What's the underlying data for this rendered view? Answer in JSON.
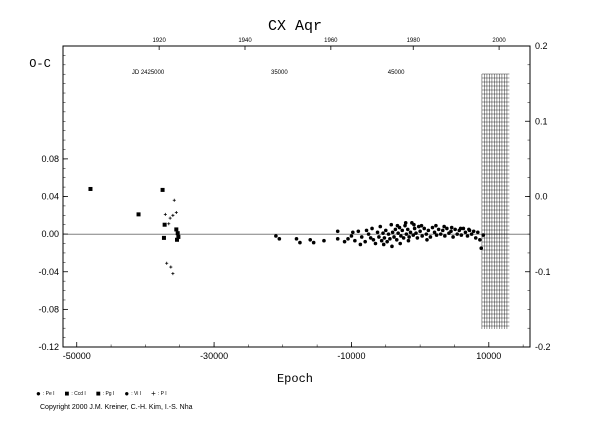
{
  "chart_data": {
    "type": "scatter",
    "title": "CX Aqr",
    "ylabel": "O-C",
    "xlabel": "Epoch",
    "top_axis_label": "JD 2425000",
    "xlim": [
      -52000,
      16000
    ],
    "ylim": [
      -0.12,
      0.2
    ],
    "right_ylim": [
      -0.2,
      0.2
    ],
    "grid": false,
    "x_ticks": [
      "-50000",
      "-30000",
      "-10000",
      "10000"
    ],
    "x_tick_values": [
      -50000,
      -30000,
      -10000,
      10000
    ],
    "y_ticks": [
      "-0.12",
      "-0.08",
      "-0.04",
      "0.00",
      "0.04",
      "0.08"
    ],
    "y_tick_values": [
      -0.12,
      -0.08,
      -0.04,
      0.0,
      0.04,
      0.08
    ],
    "right_y_ticks": [
      "-0.2",
      "-0.1",
      "0.0",
      "0.1",
      "0.2"
    ],
    "right_y_tick_values": [
      -0.2,
      -0.1,
      0.0,
      0.1,
      0.2
    ],
    "top_ticks": [
      "1920",
      "1940",
      "1960",
      "1980",
      "2000"
    ],
    "top_tick_epochs": [
      -38000,
      -25500,
      -13000,
      -1000,
      11500
    ],
    "top_jd_ticks": [
      "35000",
      "45000"
    ],
    "top_jd_epochs": [
      -20500,
      -3500
    ],
    "hatched_region": [
      9000,
      13000
    ],
    "series": [
      {
        "name": "Pe I",
        "marker": "circle",
        "points": [
          [
            -21000,
            -0.002
          ],
          [
            -20500,
            -0.005
          ],
          [
            -18000,
            -0.005
          ],
          [
            -17500,
            -0.009
          ],
          [
            -16000,
            -0.006
          ],
          [
            -15500,
            -0.009
          ],
          [
            -14000,
            -0.007
          ],
          [
            -12000,
            -0.005
          ],
          [
            -12000,
            0.003
          ]
        ]
      },
      {
        "name": "Ccd I",
        "marker": "square",
        "points": [
          [
            -48000,
            0.048
          ],
          [
            -41000,
            0.021
          ],
          [
            -37500,
            0.047
          ],
          [
            -37200,
            0.01
          ],
          [
            -37300,
            -0.004
          ]
        ]
      },
      {
        "name": "Pg I",
        "marker": "square",
        "points": [
          [
            -35500,
            0.005
          ],
          [
            -35300,
            0.001
          ],
          [
            -35200,
            -0.003
          ],
          [
            -35400,
            -0.006
          ]
        ]
      },
      {
        "name": "Vi I",
        "marker": "circle",
        "points": [
          [
            -9000,
            0.003
          ],
          [
            -8500,
            -0.003
          ],
          [
            -8000,
            -0.008
          ],
          [
            -7500,
            0.0
          ],
          [
            -7200,
            -0.004
          ],
          [
            -7000,
            0.006
          ],
          [
            -6800,
            -0.006
          ],
          [
            -6500,
            -0.01
          ],
          [
            -6200,
            0.002
          ],
          [
            -6000,
            -0.003
          ],
          [
            -5800,
            0.008
          ],
          [
            -5600,
            -0.007
          ],
          [
            -5400,
            0.001
          ],
          [
            -5200,
            -0.004
          ],
          [
            -5000,
            0.004
          ],
          [
            -4800,
            -0.008
          ],
          [
            -4600,
            0.0
          ],
          [
            -4400,
            -0.005
          ],
          [
            -4200,
            0.01
          ],
          [
            -4000,
            0.002
          ],
          [
            -3800,
            -0.003
          ],
          [
            -3600,
            0.005
          ],
          [
            -3400,
            -0.006
          ],
          [
            -3200,
            0.001
          ],
          [
            -3000,
            0.007
          ],
          [
            -2800,
            -0.002
          ],
          [
            -2600,
            0.004
          ],
          [
            -2400,
            -0.004
          ],
          [
            -2200,
            0.009
          ],
          [
            -2000,
            0.0
          ],
          [
            -1800,
            0.005
          ],
          [
            -1600,
            -0.003
          ],
          [
            -1400,
            0.002
          ],
          [
            -1200,
            0.012
          ],
          [
            -1000,
            -0.001
          ],
          [
            -800,
            0.006
          ],
          [
            -600,
            0.001
          ],
          [
            -400,
            -0.004
          ],
          [
            -200,
            0.008
          ],
          [
            0,
            0.003
          ],
          [
            300,
            -0.002
          ],
          [
            600,
            0.006
          ],
          [
            900,
            0.0
          ],
          [
            1200,
            0.004
          ],
          [
            1500,
            -0.003
          ],
          [
            1800,
            0.007
          ],
          [
            2100,
            0.002
          ],
          [
            2400,
            -0.001
          ],
          [
            2700,
            0.005
          ],
          [
            3000,
            0.0
          ],
          [
            3300,
            0.004
          ],
          [
            3600,
            -0.002
          ],
          [
            3900,
            0.006
          ],
          [
            4200,
            0.001
          ],
          [
            4500,
            0.003
          ],
          [
            4800,
            -0.003
          ],
          [
            5100,
            0.005
          ],
          [
            5400,
            0.0
          ],
          [
            5700,
            0.004
          ],
          [
            6000,
            -0.001
          ],
          [
            6300,
            0.006
          ],
          [
            6600,
            0.002
          ],
          [
            6900,
            -0.002
          ],
          [
            7200,
            0.004
          ],
          [
            7500,
            0.0
          ],
          [
            7800,
            0.003
          ],
          [
            8100,
            -0.004
          ],
          [
            8400,
            0.002
          ],
          [
            8700,
            -0.006
          ],
          [
            8900,
            -0.015
          ],
          [
            9200,
            -0.001
          ],
          [
            -10500,
            -0.005
          ],
          [
            -10000,
            -0.002
          ],
          [
            -9500,
            -0.007
          ],
          [
            -11000,
            -0.008
          ],
          [
            -9800,
            0.002
          ],
          [
            -8700,
            -0.011
          ],
          [
            -7800,
            0.004
          ],
          [
            -5300,
            -0.011
          ],
          [
            -4100,
            -0.013
          ],
          [
            -2900,
            -0.01
          ],
          [
            -1700,
            -0.007
          ],
          [
            1000,
            -0.006
          ],
          [
            2300,
            0.009
          ],
          [
            3500,
            0.008
          ],
          [
            4600,
            0.007
          ],
          [
            5900,
            0.006
          ],
          [
            7100,
            0.005
          ],
          [
            -3300,
            0.009
          ],
          [
            -2100,
            0.012
          ],
          [
            -900,
            0.01
          ],
          [
            200,
            0.009
          ]
        ]
      },
      {
        "name": "P I",
        "marker": "plus",
        "points": [
          [
            -35800,
            0.036
          ],
          [
            -35500,
            0.023
          ],
          [
            -36000,
            0.02
          ],
          [
            -36400,
            0.017
          ],
          [
            -37100,
            0.021
          ],
          [
            -36600,
            0.011
          ],
          [
            -36900,
            -0.031
          ],
          [
            -36300,
            -0.035
          ],
          [
            -36000,
            -0.042
          ]
        ]
      }
    ]
  },
  "legend": [
    {
      "mark": "●",
      "label": ": Pe I"
    },
    {
      "mark": "■",
      "label": ": Ccd I"
    },
    {
      "mark": "■",
      "label": ": Pg I"
    },
    {
      "mark": "●",
      "label": ": Vi I"
    },
    {
      "mark": "+",
      "label": ": P I"
    }
  ],
  "copyright": "Copyright 2000 J.M. Kreiner, C.-H. Kim, I.-S. Nha"
}
